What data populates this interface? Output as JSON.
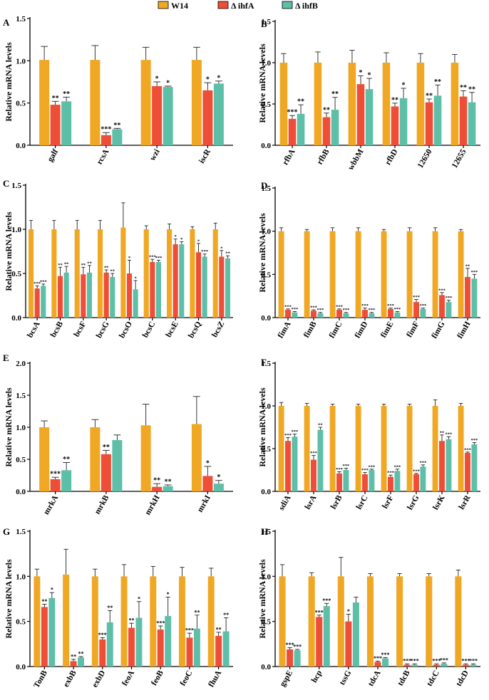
{
  "colors": {
    "W14": "#F0A824",
    "ihfA": "#EE4E37",
    "ihfB": "#5DBFA8",
    "axis": "#000000"
  },
  "legend": [
    {
      "label": "W14",
      "color": "#F0A824"
    },
    {
      "label": "Δ ihfA",
      "color": "#EE4E37"
    },
    {
      "label": "Δ ihfB",
      "color": "#5DBFA8"
    }
  ],
  "chart_data": [
    {
      "panel": "A",
      "type": "bar",
      "ylabel": "Relative mRNA levels",
      "ylim": [
        0,
        1.5
      ],
      "yticks": [
        "0.0",
        "0.5",
        "1.0",
        "1.5"
      ],
      "categories": [
        "galf",
        "rcsA",
        "wzi",
        "iscR"
      ],
      "series": [
        {
          "name": "W14",
          "values": [
            1.01,
            1.01,
            1.01,
            1.01
          ],
          "errors": [
            0.16,
            0.17,
            0.15,
            0.15
          ]
        },
        {
          "name": "Δ ihfA",
          "values": [
            0.48,
            0.12,
            0.7,
            0.65
          ],
          "errors": [
            0.04,
            0.03,
            0.05,
            0.09
          ]
        },
        {
          "name": "Δ ihfB",
          "values": [
            0.52,
            0.19,
            0.69,
            0.73
          ],
          "errors": [
            0.05,
            0.01,
            0.01,
            0.03
          ]
        }
      ],
      "significance": [
        [
          "**",
          "***",
          "*",
          "*"
        ],
        [
          "**",
          "**",
          "*",
          "*"
        ]
      ]
    },
    {
      "panel": "B",
      "type": "bar",
      "ylabel": "Relative mRNA levels",
      "ylim": [
        0,
        1.5
      ],
      "yticks": [
        "0.0",
        "0.5",
        "1.0",
        "1.5"
      ],
      "categories": [
        "rfbA",
        "rfbB",
        "wbbM",
        "rfbD",
        "12650",
        "12655"
      ],
      "series": [
        {
          "name": "W14",
          "values": [
            1.0,
            1.0,
            1.0,
            1.0,
            1.0,
            1.0
          ],
          "errors": [
            0.11,
            0.13,
            0.15,
            0.12,
            0.11,
            0.1
          ]
        },
        {
          "name": "Δ ihfA",
          "values": [
            0.32,
            0.34,
            0.74,
            0.47,
            0.52,
            0.59
          ],
          "errors": [
            0.04,
            0.05,
            0.1,
            0.04,
            0.04,
            0.07
          ]
        },
        {
          "name": "Δ ihfB",
          "values": [
            0.38,
            0.43,
            0.68,
            0.57,
            0.6,
            0.52
          ],
          "errors": [
            0.11,
            0.15,
            0.13,
            0.12,
            0.13,
            0.12
          ]
        }
      ],
      "significance": [
        [
          "***",
          "**",
          "*",
          "**",
          "**",
          "**"
        ],
        [
          "**",
          "**",
          "*",
          "*",
          "**",
          "**"
        ]
      ]
    },
    {
      "panel": "C",
      "type": "bar",
      "ylabel": "Relative mRNA levels",
      "ylim": [
        0,
        1.5
      ],
      "yticks": [
        "0.0",
        "0.5",
        "1.0",
        "1.5"
      ],
      "categories": [
        "bcsA",
        "bcsB",
        "bcsF",
        "bcsG",
        "bcsO",
        "bcsC",
        "bcsE",
        "bcsQ",
        "bcsZ"
      ],
      "series": [
        {
          "name": "W14",
          "values": [
            1.0,
            1.0,
            1.0,
            1.0,
            1.02,
            1.0,
            1.0,
            1.0,
            1.0
          ],
          "errors": [
            0.1,
            0.1,
            0.1,
            0.1,
            0.28,
            0.04,
            0.06,
            0.03,
            0.07
          ]
        },
        {
          "name": "Δ ihfA",
          "values": [
            0.33,
            0.47,
            0.49,
            0.51,
            0.5,
            0.63,
            0.83,
            0.74,
            0.69
          ],
          "errors": [
            0.03,
            0.1,
            0.08,
            0.03,
            0.15,
            0.03,
            0.06,
            0.1,
            0.07
          ]
        },
        {
          "name": "Δ ihfB",
          "values": [
            0.36,
            0.51,
            0.51,
            0.46,
            0.32,
            0.63,
            0.83,
            0.69,
            0.67
          ],
          "errors": [
            0.02,
            0.07,
            0.08,
            0.04,
            0.1,
            0.02,
            0.03,
            0.03,
            0.03
          ]
        }
      ],
      "significance": [
        [
          "***",
          "**",
          "**",
          "**",
          "*",
          "***",
          "*",
          "*",
          "*"
        ],
        [
          "***",
          "**",
          "**",
          "**",
          "*",
          "***",
          "*",
          "***",
          "**"
        ]
      ]
    },
    {
      "panel": "D",
      "type": "bar",
      "ylabel": "Relative mRNA levels",
      "ylim": [
        0,
        1.5
      ],
      "yticks": [
        "0.0",
        "0.5",
        "1.0",
        "1.5"
      ],
      "categories": [
        "fimA",
        "fimB",
        "fimC",
        "fimD",
        "fimE",
        "fimF",
        "fimG",
        "fimH"
      ],
      "series": [
        {
          "name": "W14",
          "values": [
            1.0,
            1.0,
            1.0,
            1.0,
            1.0,
            1.0,
            1.0,
            1.0
          ],
          "errors": [
            0.04,
            0.02,
            0.04,
            0.04,
            0.02,
            0.04,
            0.04,
            0.02
          ]
        },
        {
          "name": "Δ ihfA",
          "values": [
            0.09,
            0.08,
            0.09,
            0.09,
            0.1,
            0.18,
            0.26,
            0.47
          ],
          "errors": [
            0.01,
            0.01,
            0.01,
            0.02,
            0.01,
            0.03,
            0.03,
            0.1
          ]
        },
        {
          "name": "Δ ihfB",
          "values": [
            0.06,
            0.05,
            0.05,
            0.05,
            0.06,
            0.1,
            0.18,
            0.45
          ],
          "errors": [
            0.01,
            0.01,
            0.01,
            0.01,
            0.01,
            0.01,
            0.02,
            0.05
          ]
        }
      ],
      "significance": [
        [
          "***",
          "***",
          "***",
          "***",
          "***",
          "***",
          "***",
          "**"
        ],
        [
          "***",
          "***",
          "***",
          "***",
          "***",
          "***",
          "***",
          "***"
        ]
      ]
    },
    {
      "panel": "E",
      "type": "bar",
      "ylabel": "Relative mRNA levels",
      "ylim": [
        0,
        2.0
      ],
      "yticks": [
        "0.0",
        "0.5",
        "1.0",
        "1.5",
        "2.0"
      ],
      "categories": [
        "mrkA",
        "mrkB",
        "mrkH",
        "mrkI"
      ],
      "series": [
        {
          "name": "W14",
          "values": [
            1.0,
            1.0,
            1.03,
            1.05
          ],
          "errors": [
            0.1,
            0.12,
            0.33,
            0.43
          ]
        },
        {
          "name": "Δ ihfA",
          "values": [
            0.19,
            0.58,
            0.07,
            0.24
          ],
          "errors": [
            0.03,
            0.06,
            0.05,
            0.15
          ]
        },
        {
          "name": "Δ ihfB",
          "values": [
            0.33,
            0.8,
            0.08,
            0.12
          ],
          "errors": [
            0.12,
            0.08,
            0.02,
            0.05
          ]
        }
      ],
      "significance": [
        [
          "***",
          "**",
          "**",
          "*"
        ],
        [
          "**",
          "",
          "**",
          "*"
        ]
      ]
    },
    {
      "panel": "F",
      "type": "bar",
      "ylabel": "Relative mRNA levels",
      "ylim": [
        0,
        1.5
      ],
      "yticks": [
        "0.0",
        "0.5",
        "1.0",
        "1.5"
      ],
      "categories": [
        "sdiA",
        "lsrA",
        "lsrB",
        "lsrC",
        "lsrF",
        "lsrG",
        "lsrK",
        "lsrR"
      ],
      "series": [
        {
          "name": "W14",
          "values": [
            1.0,
            1.0,
            1.0,
            1.0,
            1.0,
            1.0,
            1.0,
            1.0
          ],
          "errors": [
            0.04,
            0.03,
            0.02,
            0.02,
            0.02,
            0.02,
            0.07,
            0.03
          ]
        },
        {
          "name": "Δ ihfA",
          "values": [
            0.59,
            0.37,
            0.21,
            0.2,
            0.17,
            0.2,
            0.59,
            0.45
          ],
          "errors": [
            0.04,
            0.05,
            0.02,
            0.02,
            0.02,
            0.01,
            0.07,
            0.01
          ]
        },
        {
          "name": "Δ ihfB",
          "values": [
            0.64,
            0.72,
            0.25,
            0.25,
            0.24,
            0.29,
            0.61,
            0.55
          ],
          "errors": [
            0.03,
            0.03,
            0.02,
            0.01,
            0.02,
            0.02,
            0.03,
            0.02
          ]
        }
      ],
      "significance": [
        [
          "***",
          "***",
          "***",
          "***",
          "***",
          "***",
          "**",
          "***"
        ],
        [
          "***",
          "**",
          "***",
          "***",
          "***",
          "***",
          "***",
          "***"
        ]
      ]
    },
    {
      "panel": "G",
      "type": "bar",
      "ylabel": "Relative mRNA levels",
      "ylim": [
        0,
        1.5
      ],
      "yticks": [
        "0.0",
        "0.5",
        "1.0",
        "1.5"
      ],
      "categories": [
        "TonB",
        "exbB",
        "exbD",
        "feoA",
        "feoB",
        "feoC",
        "fhuA"
      ],
      "series": [
        {
          "name": "W14",
          "values": [
            1.0,
            1.02,
            1.0,
            1.0,
            1.0,
            1.0,
            1.0
          ],
          "errors": [
            0.08,
            0.28,
            0.08,
            0.13,
            0.11,
            0.1,
            0.09
          ]
        },
        {
          "name": "Δ ihfA",
          "values": [
            0.66,
            0.06,
            0.3,
            0.43,
            0.41,
            0.32,
            0.34
          ],
          "errors": [
            0.03,
            0.02,
            0.02,
            0.05,
            0.04,
            0.05,
            0.04
          ]
        },
        {
          "name": "Δ ihfB",
          "values": [
            0.76,
            0.1,
            0.49,
            0.54,
            0.56,
            0.42,
            0.39
          ],
          "errors": [
            0.06,
            0.01,
            0.13,
            0.18,
            0.21,
            0.15,
            0.15
          ]
        }
      ],
      "significance": [
        [
          "**",
          "**",
          "***",
          "**",
          "***",
          "***",
          "**"
        ],
        [
          "*",
          "**",
          "**",
          "*",
          "*",
          "**",
          "**"
        ]
      ]
    },
    {
      "panel": "H",
      "type": "bar",
      "ylabel": "Relative mRNA levels",
      "ylim": [
        0,
        1.5
      ],
      "yticks": [
        "0.0",
        "0.5",
        "1.0",
        "1.5"
      ],
      "categories": [
        "gspE",
        "hcp",
        "tssG",
        "tdcA",
        "tdcB",
        "tdcC",
        "tdcD"
      ],
      "series": [
        {
          "name": "W14",
          "values": [
            1.0,
            1.0,
            1.0,
            1.0,
            1.0,
            1.0,
            1.0
          ],
          "errors": [
            0.13,
            0.04,
            0.21,
            0.03,
            0.03,
            0.03,
            0.07
          ]
        },
        {
          "name": "Δ ihfA",
          "values": [
            0.19,
            0.55,
            0.5,
            0.05,
            0.02,
            0.02,
            0.02
          ],
          "errors": [
            0.02,
            0.02,
            0.08,
            0.01,
            0.01,
            0.01,
            0.01
          ]
        },
        {
          "name": "Δ ihfB",
          "values": [
            0.18,
            0.67,
            0.71,
            0.09,
            0.02,
            0.03,
            0.02
          ],
          "errors": [
            0.01,
            0.03,
            0.06,
            0.01,
            0.01,
            0.01,
            0.01
          ]
        }
      ],
      "significance": [
        [
          "***",
          "***",
          "*",
          "***",
          "***",
          "***",
          "***"
        ],
        [
          "***",
          "***",
          "",
          "***",
          "***",
          "***",
          "***"
        ]
      ]
    }
  ]
}
